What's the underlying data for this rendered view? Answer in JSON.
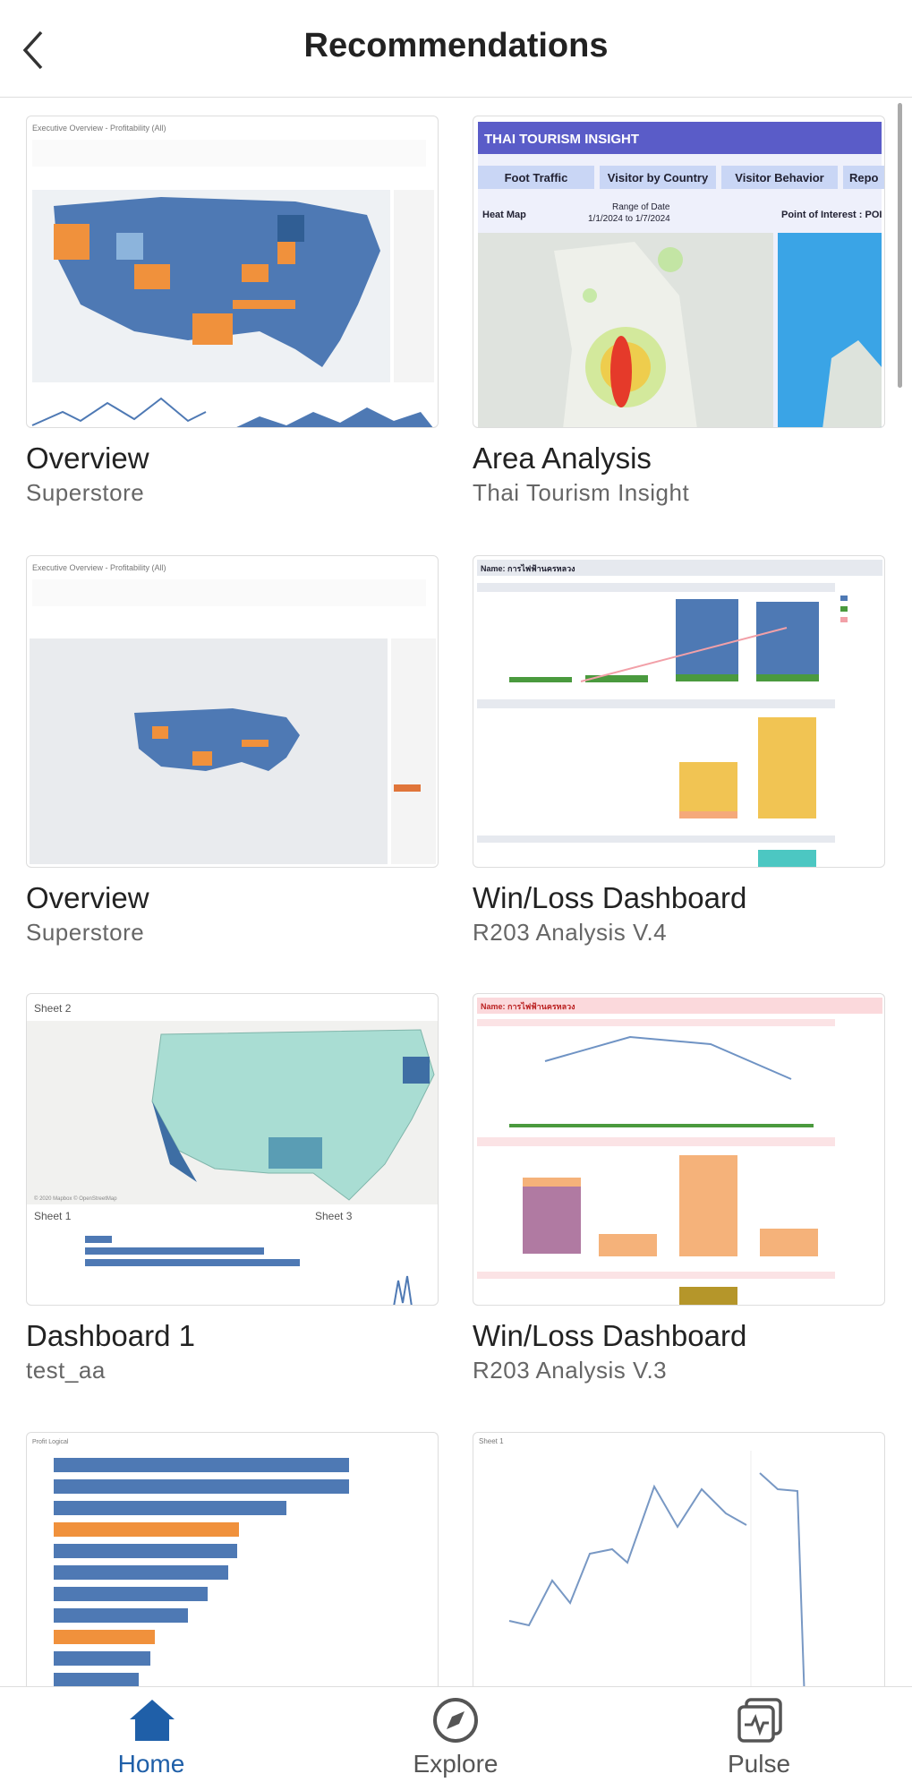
{
  "header": {
    "title": "Recommendations"
  },
  "cards": [
    {
      "title": "Overview",
      "subtitle": "Superstore",
      "thumb_text": [
        "Executive Overview - Profitability (All)"
      ]
    },
    {
      "title": "Area Analysis",
      "subtitle": "Thai Tourism Insight",
      "thumb_text": [
        "THAI TOURISM INSIGHT",
        "Foot Traffic",
        "Visitor by Country",
        "Visitor Behavior",
        "Repo",
        "Heat Map",
        "Range of Date",
        "1/1/2024 to 1/7/2024",
        "Point of Interest : POI"
      ]
    },
    {
      "title": "Overview",
      "subtitle": "Superstore",
      "thumb_text": [
        "Executive Overview - Profitability (All)"
      ]
    },
    {
      "title": "Win/Loss Dashboard",
      "subtitle": "R203 Analysis V.4",
      "thumb_text": [
        "Name: การไฟฟ้านครหลวง"
      ]
    },
    {
      "title": "Dashboard 1",
      "subtitle": "test_aa",
      "thumb_text": [
        "Sheet 2",
        "Sheet 1",
        "Sheet 3"
      ]
    },
    {
      "title": "Win/Loss Dashboard",
      "subtitle": "R203 Analysis V.3",
      "thumb_text": [
        "Name: การไฟฟ้านครหลวง"
      ]
    },
    {
      "title": "",
      "subtitle": "",
      "thumb_text": [
        "Profit Logical"
      ]
    },
    {
      "title": "",
      "subtitle": "",
      "thumb_text": [
        "Sheet 1"
      ]
    }
  ],
  "nav": {
    "items": [
      "Home",
      "Explore",
      "Pulse"
    ]
  }
}
